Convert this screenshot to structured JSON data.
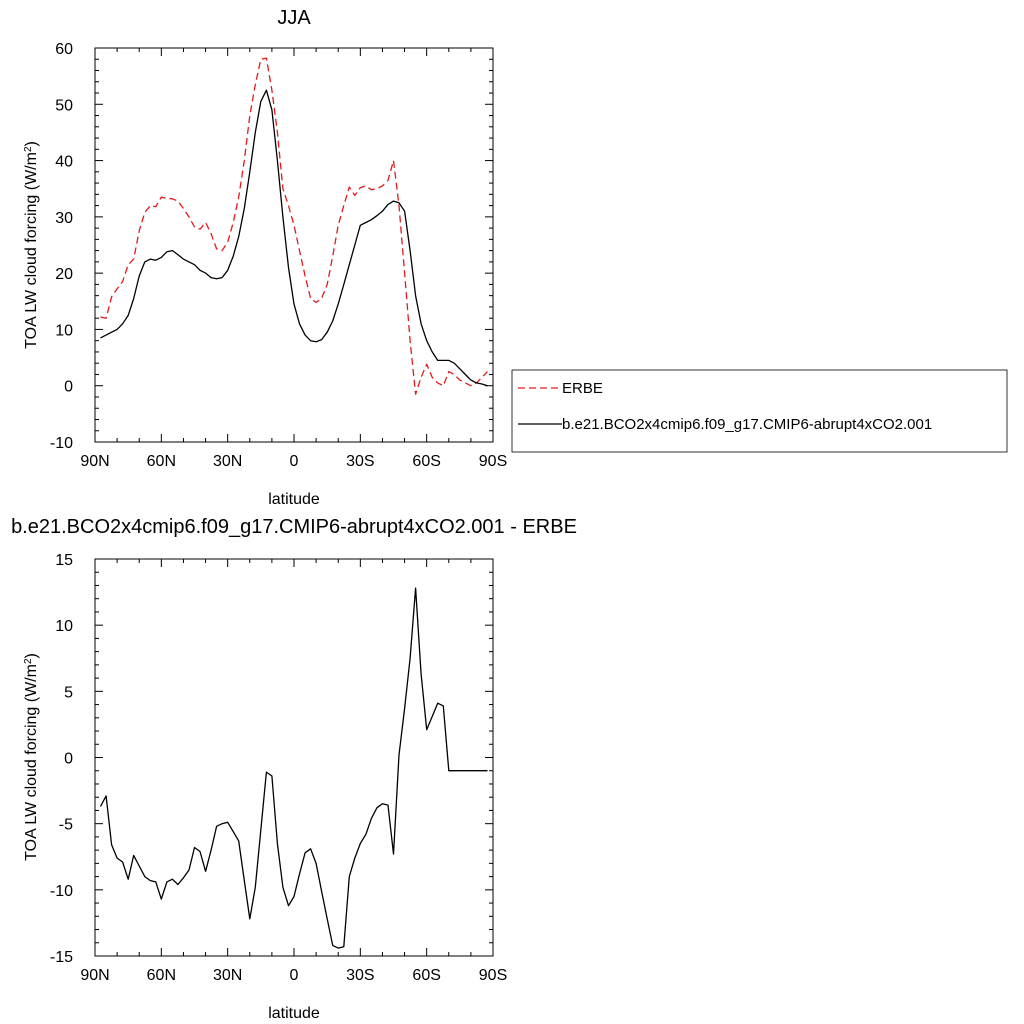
{
  "chart_data": [
    {
      "type": "line",
      "title": "JJA",
      "xlabel": "latitude",
      "ylabel": "TOA LW cloud forcing (W/m²)",
      "ylabel_parts": {
        "main": "TOA LW cloud forcing (W/m",
        "sup": "2",
        "close": ")"
      },
      "xlim": [
        90,
        -90
      ],
      "ylim": [
        -10,
        60
      ],
      "xticks": [
        90,
        60,
        30,
        0,
        -30,
        -60,
        -90
      ],
      "xtick_labels": [
        "90N",
        "60N",
        "30N",
        "0",
        "30S",
        "60S",
        "90S"
      ],
      "yticks": [
        -10,
        0,
        10,
        20,
        30,
        40,
        50,
        60
      ],
      "ytick_labels": [
        "-10",
        "0",
        "10",
        "20",
        "30",
        "40",
        "50",
        "60"
      ],
      "legend_position": "right",
      "series": [
        {
          "name": "ERBE",
          "color": "#e41a1c",
          "style": "dashed",
          "x": [
            87.5,
            85,
            82.5,
            80,
            77.5,
            75,
            72.5,
            70,
            67.5,
            65,
            62.5,
            60,
            57.5,
            55,
            52.5,
            50,
            47.5,
            45,
            42.5,
            40,
            37.5,
            35,
            32.5,
            30,
            27.5,
            25,
            22.5,
            20,
            17.5,
            15,
            12.5,
            10,
            7.5,
            5,
            2.5,
            0,
            -2.5,
            -5,
            -7.5,
            -10,
            -12.5,
            -15,
            -17.5,
            -20,
            -22.5,
            -25,
            -27.5,
            -30,
            -32.5,
            -35,
            -37.5,
            -40,
            -42.5,
            -45,
            -47.5,
            -50,
            -52.5,
            -55,
            -57.5,
            -60,
            -62.5,
            -65,
            -67.5,
            -70,
            -72.5,
            -75,
            -77.5,
            -80,
            -82.5,
            -85,
            -87.5
          ],
          "y": [
            12.2,
            12.0,
            15.8,
            17.2,
            18.5,
            21.5,
            22.5,
            27.5,
            30.8,
            32.0,
            31.8,
            33.5,
            33.3,
            33.2,
            32.8,
            31.5,
            30.0,
            28.2,
            27.8,
            29.0,
            27.0,
            24.3,
            24.0,
            25.5,
            29.0,
            33.5,
            40.0,
            48.0,
            53.5,
            58.0,
            58.2,
            52.5,
            45.0,
            35.0,
            32.0,
            28.5,
            24.0,
            19.5,
            15.5,
            14.8,
            15.5,
            18.0,
            23.0,
            28.5,
            32.0,
            35.3,
            33.8,
            35.2,
            35.5,
            34.8,
            35.0,
            35.5,
            36.5,
            40.0,
            32.0,
            20.0,
            8.0,
            -1.5,
            1.5,
            3.8,
            1.5,
            0.5,
            0.0,
            2.5,
            2.0,
            1.0,
            0.5,
            0.0,
            0.5,
            1.5,
            2.5
          ]
        },
        {
          "name": "b.e21.BCO2x4cmip6.f09_g17.CMIP6-abrupt4xCO2.001",
          "color": "#000000",
          "style": "solid",
          "x": [
            87.5,
            85,
            82.5,
            80,
            77.5,
            75,
            72.5,
            70,
            67.5,
            65,
            62.5,
            60,
            57.5,
            55,
            52.5,
            50,
            47.5,
            45,
            42.5,
            40,
            37.5,
            35,
            32.5,
            30,
            27.5,
            25,
            22.5,
            20,
            17.5,
            15,
            12.5,
            10,
            7.5,
            5,
            2.5,
            0,
            -2.5,
            -5,
            -7.5,
            -10,
            -12.5,
            -15,
            -17.5,
            -20,
            -22.5,
            -25,
            -27.5,
            -30,
            -32.5,
            -35,
            -37.5,
            -40,
            -42.5,
            -45,
            -47.5,
            -50,
            -52.5,
            -55,
            -57.5,
            -60,
            -62.5,
            -65,
            -67.5,
            -70,
            -72.5,
            -75,
            -77.5,
            -80,
            -82.5,
            -85,
            -87.5
          ],
          "y": [
            8.5,
            9.0,
            9.5,
            10.0,
            11.0,
            12.5,
            15.5,
            19.5,
            22.0,
            22.5,
            22.3,
            22.8,
            23.8,
            24.0,
            23.3,
            22.5,
            22.0,
            21.5,
            20.5,
            20.0,
            19.2,
            19.0,
            19.2,
            20.5,
            23.0,
            26.5,
            31.5,
            38.0,
            45.0,
            50.5,
            52.5,
            49.0,
            40.0,
            30.0,
            21.0,
            14.5,
            11.0,
            9.0,
            8.0,
            7.8,
            8.2,
            9.5,
            11.5,
            14.5,
            18.0,
            21.5,
            25.0,
            28.5,
            29.0,
            29.5,
            30.2,
            31.0,
            32.2,
            32.8,
            32.5,
            31.0,
            24.0,
            16.0,
            11.0,
            8.0,
            6.0,
            4.5,
            4.5,
            4.5,
            4.0,
            3.0,
            2.0,
            1.0,
            0.5,
            0.3,
            0.0
          ]
        }
      ]
    },
    {
      "type": "line",
      "title": "b.e21.BCO2x4cmip6.f09_g17.CMIP6-abrupt4xCO2.001 - ERBE",
      "xlabel": "latitude",
      "ylabel": "TOA LW cloud forcing (W/m²)",
      "ylabel_parts": {
        "main": "TOA LW cloud forcing (W/m",
        "sup": "2",
        "close": ")"
      },
      "xlim": [
        90,
        -90
      ],
      "ylim": [
        -15,
        15
      ],
      "xticks": [
        90,
        60,
        30,
        0,
        -30,
        -60,
        -90
      ],
      "xtick_labels": [
        "90N",
        "60N",
        "30N",
        "0",
        "30S",
        "60S",
        "90S"
      ],
      "yticks": [
        -15,
        -10,
        -5,
        0,
        5,
        10,
        15
      ],
      "ytick_labels": [
        "-15",
        "-10",
        "-5",
        "0",
        "5",
        "10",
        "15"
      ],
      "series": [
        {
          "color": "#000000",
          "style": "solid",
          "x": [
            87.5,
            85,
            82.5,
            80,
            77.5,
            75,
            72.5,
            70,
            67.5,
            65,
            62.5,
            60,
            57.5,
            55,
            52.5,
            50,
            47.5,
            45,
            42.5,
            40,
            37.5,
            35,
            32.5,
            30,
            27.5,
            25,
            22.5,
            20,
            17.5,
            15,
            12.5,
            10,
            7.5,
            5,
            2.5,
            0,
            -2.5,
            -5,
            -7.5,
            -10,
            -12.5,
            -15,
            -17.5,
            -20,
            -22.5,
            -25,
            -27.5,
            -30,
            -32.5,
            -35,
            -37.5,
            -40,
            -42.5,
            -45,
            -47.5,
            -50,
            -52.5,
            -55,
            -57.5,
            -60,
            -62.5,
            -65,
            -67.5,
            -70,
            -72.5,
            -75,
            -77.5,
            -80,
            -82.5,
            -85,
            -87.5
          ],
          "y": [
            -3.7,
            -2.9,
            -6.6,
            -7.6,
            -7.9,
            -9.2,
            -7.4,
            -8.2,
            -9.0,
            -9.3,
            -9.4,
            -10.7,
            -9.4,
            -9.2,
            -9.6,
            -9.1,
            -8.5,
            -6.8,
            -7.1,
            -8.6,
            -7.0,
            -5.2,
            -5.0,
            -4.9,
            -5.6,
            -6.3,
            -9.3,
            -12.2,
            -9.8,
            -5.5,
            -1.1,
            -1.4,
            -6.5,
            -9.8,
            -11.2,
            -10.5,
            -8.8,
            -7.2,
            -6.9,
            -8.0,
            -10.1,
            -12.2,
            -14.2,
            -14.4,
            -14.3,
            -9.0,
            -7.6,
            -6.5,
            -5.8,
            -4.6,
            -3.8,
            -3.5,
            -3.6,
            -7.3,
            0.2,
            3.7,
            7.5,
            12.8,
            6.3,
            2.1,
            3.1,
            4.1,
            3.9,
            -1.0,
            -1.0,
            -1.0,
            -1.0,
            -1.0,
            -1.0,
            -1.0,
            -1.0
          ]
        }
      ]
    }
  ]
}
